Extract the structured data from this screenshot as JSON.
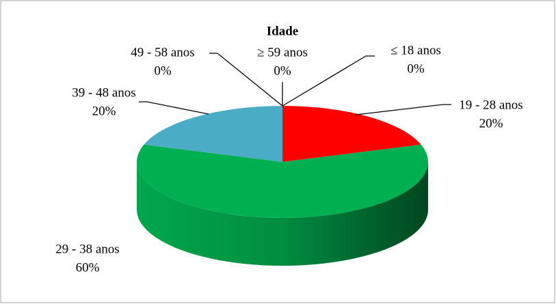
{
  "chart_data": {
    "type": "pie3d",
    "title": "Idade",
    "categories": [
      "≤ 18 anos",
      "19 - 28 anos",
      "29 - 38 anos",
      "39 - 48 anos",
      "49 - 58 anos",
      "≥ 59 anos"
    ],
    "values": [
      0,
      20,
      60,
      20,
      0,
      0
    ],
    "value_labels": [
      "0%",
      "20%",
      "60%",
      "20%",
      "0%",
      "0%"
    ],
    "colors": [
      null,
      "#ff0000",
      "#00b050",
      "#4bacc6",
      null,
      null
    ]
  }
}
